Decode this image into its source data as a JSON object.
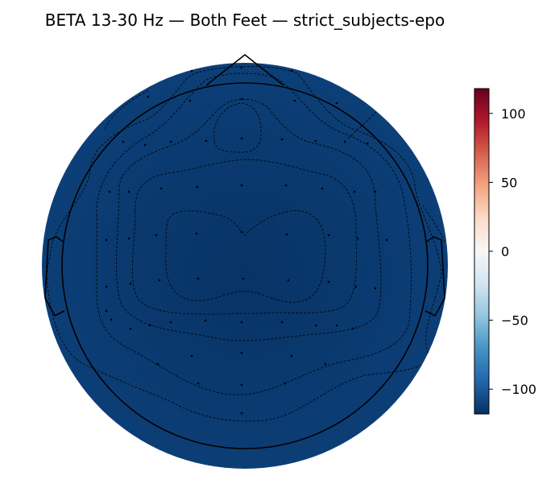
{
  "chart_data": {
    "type": "heatmap",
    "subtype": "eeg-topomap",
    "title": "BETA 13-30 Hz — Both Feet — strict_subjects-epo",
    "colormap": "RdBu_r",
    "colorbar": {
      "vmin": -118,
      "vmax": 118,
      "ticks": [
        100,
        50,
        0,
        -50,
        -100
      ],
      "tick_labels": [
        "100",
        "50",
        "0",
        "−50",
        "−100"
      ]
    },
    "map_value_range": [
      -118,
      -104
    ],
    "contour_levels": [
      -116,
      -114,
      -112,
      -110,
      -108,
      -106
    ],
    "sensor_count": 64
  }
}
